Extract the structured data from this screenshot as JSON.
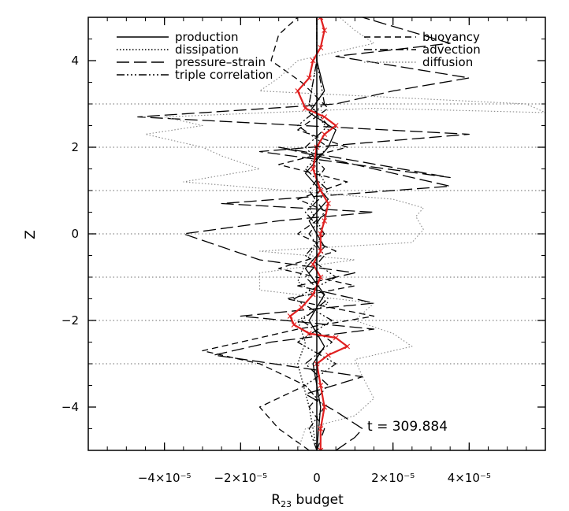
{
  "chart_data": {
    "type": "line",
    "title": "",
    "xlabel": "R",
    "xlabel_sub": "23",
    "xlabel_suffix": "budget",
    "ylabel": "Z",
    "xlim": [
      -6e-05,
      6e-05
    ],
    "ylim": [
      -5,
      5
    ],
    "xticks": [
      {
        "value": -4e-05,
        "label": "−4×10⁻⁵"
      },
      {
        "value": -2e-05,
        "label": "−2×10⁻⁵"
      },
      {
        "value": 0,
        "label": "0"
      },
      {
        "value": 2e-05,
        "label": "2×10⁻⁵"
      },
      {
        "value": 4e-05,
        "label": "4×10⁻⁵"
      }
    ],
    "yticks": [
      {
        "value": -4,
        "label": "−4"
      },
      {
        "value": -2,
        "label": "−2"
      },
      {
        "value": 0,
        "label": "0"
      },
      {
        "value": 2,
        "label": "2"
      },
      {
        "value": 4,
        "label": "4"
      }
    ],
    "horizontal_reference_lines_z": [
      -3,
      -2,
      -1,
      0,
      1,
      2,
      3
    ],
    "annotation": "t  =  309.884",
    "legend_position": "top",
    "colors": {
      "black": "#000000",
      "gray": "#888888",
      "red": "#e02020"
    },
    "series": [
      {
        "name": "production",
        "style": "solid",
        "color": "#000000",
        "points": [
          [
            0,
            -5
          ],
          [
            1e-06,
            -4
          ],
          [
            -1e-06,
            -3
          ],
          [
            2e-06,
            -2.6
          ],
          [
            -2e-06,
            -2
          ],
          [
            2e-06,
            -1.4
          ],
          [
            -3e-06,
            -0.8
          ],
          [
            2e-06,
            -0.3
          ],
          [
            -2e-06,
            0.3
          ],
          [
            3e-06,
            0.8
          ],
          [
            -3e-06,
            1.4
          ],
          [
            3e-06,
            2
          ],
          [
            5e-06,
            2.4
          ],
          [
            -2e-06,
            2.8
          ],
          [
            2e-06,
            3.3
          ],
          [
            0,
            4
          ],
          [
            0,
            5
          ]
        ]
      },
      {
        "name": "dissipation",
        "style": "dotted",
        "color": "#000000",
        "points": [
          [
            0,
            -5
          ],
          [
            -2e-06,
            -4
          ],
          [
            -5e-06,
            -3
          ],
          [
            -3e-06,
            -2.5
          ],
          [
            -5e-06,
            -2
          ],
          [
            3e-06,
            -1.6
          ],
          [
            -5e-06,
            -1.1
          ],
          [
            -2e-06,
            -0.5
          ],
          [
            2e-06,
            0
          ],
          [
            -2e-06,
            0.6
          ],
          [
            2e-06,
            1.2
          ],
          [
            -2e-06,
            1.8
          ],
          [
            3e-06,
            2.4
          ],
          [
            -2e-06,
            3
          ],
          [
            0,
            4
          ],
          [
            0,
            5
          ]
        ]
      },
      {
        "name": "pressure–strain",
        "style": "longdash",
        "color": "#000000",
        "points": [
          [
            5e-06,
            -5
          ],
          [
            1e-05,
            -4.7
          ],
          [
            1.2e-05,
            -4.5
          ],
          [
            5e-06,
            -4.1
          ],
          [
            -3e-06,
            -3.7
          ],
          [
            1.2e-05,
            -3.3
          ],
          [
            -2.7e-05,
            -2.8
          ],
          [
            -1.2e-05,
            -2.5
          ],
          [
            1.5e-05,
            -2.2
          ],
          [
            -2e-05,
            -1.9
          ],
          [
            1.5e-05,
            -1.6
          ],
          [
            -5e-06,
            -1.2
          ],
          [
            1e-05,
            -0.9
          ],
          [
            -1.5e-05,
            -0.6
          ],
          [
            -3.5e-05,
            0
          ],
          [
            -1e-05,
            0.3
          ],
          [
            1.5e-05,
            0.5
          ],
          [
            -2.5e-05,
            0.7
          ],
          [
            3.5e-05,
            1.1
          ],
          [
            -1e-05,
            2.0
          ],
          [
            3.5e-05,
            1.3
          ],
          [
            -1.5e-05,
            1.9
          ],
          [
            4e-05,
            2.3
          ],
          [
            -4.7e-05,
            2.7
          ],
          [
            5e-06,
            3.0
          ],
          [
            2e-05,
            3.3
          ],
          [
            4e-05,
            3.6
          ],
          [
            5e-06,
            4.1
          ],
          [
            3.5e-05,
            4.4
          ],
          [
            1.2e-05,
            5
          ]
        ]
      },
      {
        "name": "triple correlation",
        "style": "dashdotdot",
        "color": "#000000",
        "points": [
          [
            0,
            -5
          ],
          [
            -2e-06,
            -4.5
          ],
          [
            2e-06,
            -4
          ],
          [
            -3e-06,
            -3.5
          ],
          [
            5e-06,
            -3
          ],
          [
            -5e-06,
            -2.5
          ],
          [
            4e-06,
            -2
          ],
          [
            -6e-06,
            -1.5
          ],
          [
            5e-06,
            -1
          ],
          [
            -3e-06,
            -0.5
          ],
          [
            2e-06,
            0
          ],
          [
            -3e-06,
            0.5
          ],
          [
            3e-06,
            1
          ],
          [
            -3e-06,
            1.5
          ],
          [
            3e-06,
            2
          ],
          [
            -5e-06,
            2.5
          ],
          [
            2e-06,
            3
          ],
          [
            0,
            4
          ],
          [
            0,
            5
          ]
        ]
      },
      {
        "name": "buoyancy",
        "style": "shortdash",
        "color": "#000000",
        "points": [
          [
            -2e-06,
            -5
          ],
          [
            -1e-05,
            -4.5
          ],
          [
            -1.5e-05,
            -4.0
          ],
          [
            -3e-06,
            -3.5
          ],
          [
            -1.5e-05,
            -3.0
          ],
          [
            -3e-05,
            -2.7
          ],
          [
            -5e-06,
            -2.2
          ],
          [
            1.5e-05,
            -1.9
          ],
          [
            -8e-06,
            -1.5
          ],
          [
            1e-05,
            -1.2
          ],
          [
            -1e-05,
            -0.8
          ],
          [
            5e-06,
            -0.4
          ],
          [
            -5e-06,
            0
          ],
          [
            3e-06,
            0.5
          ],
          [
            -5e-06,
            0.8
          ],
          [
            8e-06,
            1.2
          ],
          [
            -1e-05,
            1.6
          ],
          [
            8e-06,
            2.0
          ],
          [
            -5e-06,
            2.4
          ],
          [
            3e-06,
            2.9
          ],
          [
            -4e-06,
            3.5
          ],
          [
            -1.2e-05,
            4.0
          ],
          [
            -1e-05,
            4.6
          ],
          [
            -5e-06,
            5
          ]
        ]
      },
      {
        "name": "advection",
        "style": "dashdot",
        "color": "#000000",
        "points": [
          [
            0,
            -5
          ],
          [
            2e-06,
            -4.5
          ],
          [
            -2e-06,
            -4
          ],
          [
            3e-06,
            -3.5
          ],
          [
            -3e-06,
            -3
          ],
          [
            4e-06,
            -2.5
          ],
          [
            -4e-06,
            -2
          ],
          [
            3e-06,
            -1.5
          ],
          [
            -3e-06,
            -1
          ],
          [
            2e-06,
            -0.5
          ],
          [
            -2e-06,
            0
          ],
          [
            2e-06,
            0.5
          ],
          [
            -2e-06,
            1
          ],
          [
            2e-06,
            1.5
          ],
          [
            -3e-06,
            2
          ],
          [
            3e-06,
            2.5
          ],
          [
            -2e-06,
            3
          ],
          [
            0,
            4
          ],
          [
            0,
            5
          ]
        ]
      },
      {
        "name": "diffusion",
        "style": "dotted",
        "color": "#888888",
        "points": [
          [
            -5e-06,
            -5
          ],
          [
            -3e-06,
            -4.5
          ],
          [
            1e-05,
            -4.2
          ],
          [
            1.5e-05,
            -3.8
          ],
          [
            1.2e-05,
            -3.3
          ],
          [
            1e-05,
            -2.9
          ],
          [
            2.5e-05,
            -2.6
          ],
          [
            2e-05,
            -2.3
          ],
          [
            1e-05,
            -2.0
          ],
          [
            1.5e-05,
            -1.6
          ],
          [
            -1.5e-05,
            -1.3
          ],
          [
            -1.5e-05,
            -0.9
          ],
          [
            1e-05,
            -0.6
          ],
          [
            -1.5e-05,
            -0.4
          ],
          [
            2.5e-05,
            -0.2
          ],
          [
            2.8e-05,
            0.1
          ],
          [
            2.6e-05,
            0.4
          ],
          [
            2.8e-05,
            0.6
          ],
          [
            2e-05,
            0.8
          ],
          [
            -3.5e-05,
            1.2
          ],
          [
            -1.5e-05,
            1.5
          ],
          [
            -2.5e-05,
            1.8
          ],
          [
            -3e-05,
            2.0
          ],
          [
            -4.5e-05,
            2.3
          ],
          [
            -3e-05,
            2.5
          ],
          [
            -4e-05,
            2.7
          ],
          [
            1.5e-05,
            2.9
          ],
          [
            6e-05,
            2.8
          ],
          [
            5.5e-05,
            3.0
          ],
          [
            -1.5e-05,
            3.3
          ],
          [
            -1e-05,
            3.6
          ],
          [
            -5e-06,
            4.0
          ],
          [
            1.5e-05,
            4.4
          ],
          [
            1e-05,
            4.7
          ],
          [
            6e-06,
            5
          ]
        ]
      },
      {
        "name": "",
        "style": "solid-with-crosses",
        "color": "#e02020",
        "points": [
          [
            1e-06,
            -5
          ],
          [
            1e-06,
            -4.5
          ],
          [
            2e-06,
            -4
          ],
          [
            1e-06,
            -3.5
          ],
          [
            0.0,
            -3.0
          ],
          [
            3e-06,
            -2.8
          ],
          [
            8e-06,
            -2.6
          ],
          [
            5e-06,
            -2.4
          ],
          [
            -2e-06,
            -2.3
          ],
          [
            -6e-06,
            -2.1
          ],
          [
            -7e-06,
            -1.9
          ],
          [
            -4e-06,
            -1.7
          ],
          [
            -1e-06,
            -1.4
          ],
          [
            1e-06,
            -1.0
          ],
          [
            -1e-06,
            -0.7
          ],
          [
            1e-06,
            -0.4
          ],
          [
            1e-06,
            0
          ],
          [
            2e-06,
            0.3
          ],
          [
            3e-06,
            0.7
          ],
          [
            1e-06,
            1.0
          ],
          [
            -1e-06,
            1.5
          ],
          [
            0,
            2.0
          ],
          [
            2e-06,
            2.3
          ],
          [
            5e-06,
            2.5
          ],
          [
            2e-06,
            2.7
          ],
          [
            -3e-06,
            2.9
          ],
          [
            -5e-06,
            3.3
          ],
          [
            -2e-06,
            3.6
          ],
          [
            -1e-06,
            4.0
          ],
          [
            1e-06,
            4.3
          ],
          [
            2e-06,
            4.7
          ],
          [
            1e-06,
            5
          ]
        ]
      }
    ]
  }
}
